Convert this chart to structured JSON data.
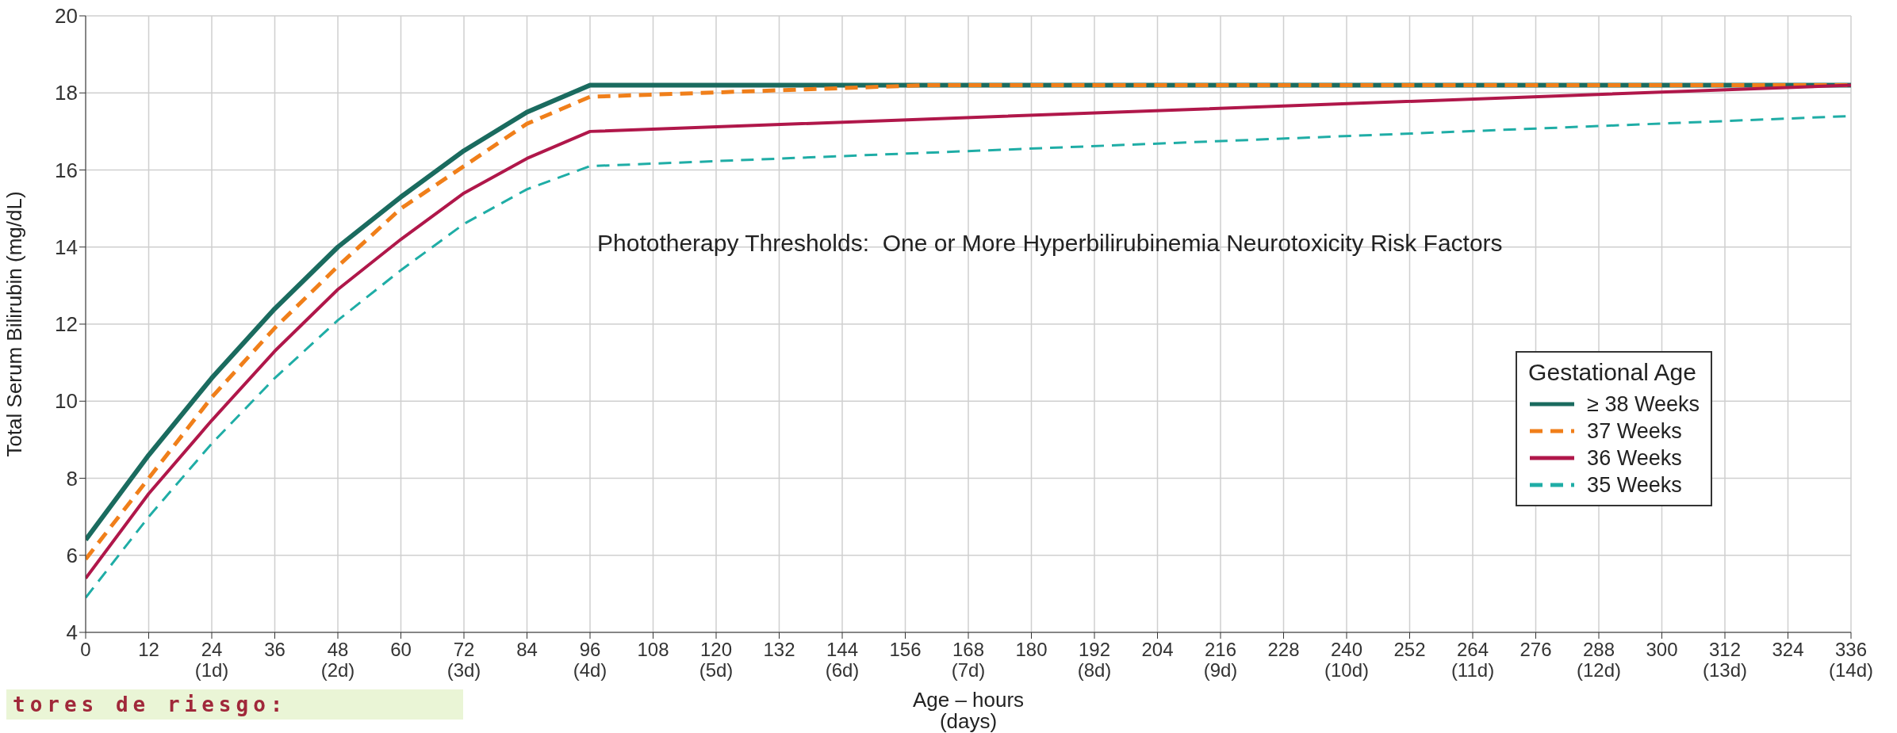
{
  "chart_data": {
    "type": "line",
    "ylabel": "Total Serum Bilirubin (mg/dL)",
    "xlabel": "Age – hours\n(days)",
    "legend_title": "Gestational Age",
    "legend": "bottom right",
    "grid": true,
    "xlim": [
      0,
      336
    ],
    "ylim": [
      4,
      20
    ],
    "yticks": [
      4,
      6,
      8,
      10,
      12,
      14,
      16,
      18,
      20
    ],
    "xticks": [
      0,
      12,
      {
        "value": 24,
        "label": "24\n(1d)"
      },
      36,
      {
        "value": 48,
        "label": "48\n(2d)"
      },
      60,
      {
        "value": 72,
        "label": "72\n(3d)"
      },
      84,
      {
        "value": 96,
        "label": "96\n(4d)"
      },
      108,
      {
        "value": 120,
        "label": "120\n(5d)"
      },
      132,
      {
        "value": 144,
        "label": "144\n(6d)"
      },
      156,
      {
        "value": 168,
        "label": "168\n(7d)"
      },
      180,
      {
        "value": 192,
        "label": "192\n(8d)"
      },
      204,
      {
        "value": 216,
        "label": "216\n(9d)"
      },
      228,
      {
        "value": 240,
        "label": "240\n(10d)"
      },
      252,
      {
        "value": 264,
        "label": "264\n(11d)"
      },
      276,
      {
        "value": 288,
        "label": "288\n(12d)"
      },
      300,
      {
        "value": 312,
        "label": "312\n(13d)"
      },
      324,
      {
        "value": 336,
        "label": "336\n(14d)"
      }
    ],
    "annotations": [
      "Phototherapy Thresholds:  One or More Hyperbilirubinemia Neurotoxicity Risk Factors",
      "tores de riesgo:"
    ],
    "series": [
      {
        "name": "≥ 38 Weeks",
        "color": "#1a6b5f",
        "line_style": "solid",
        "x": [
          0,
          12,
          24,
          36,
          48,
          60,
          72,
          84,
          96,
          336
        ],
        "values": [
          6.4,
          8.6,
          10.6,
          12.4,
          14.0,
          15.3,
          16.5,
          17.5,
          18.2,
          18.2
        ]
      },
      {
        "name": "37 Weeks",
        "color": "#f07f1a",
        "line_style": "dashed",
        "x": [
          0,
          12,
          24,
          36,
          48,
          60,
          72,
          84,
          96,
          160,
          336
        ],
        "values": [
          5.9,
          8.0,
          10.1,
          11.9,
          13.5,
          15.0,
          16.1,
          17.2,
          17.9,
          18.2,
          18.2
        ]
      },
      {
        "name": "36 Weeks",
        "color": "#b0174a",
        "line_style": "solid",
        "x": [
          0,
          12,
          24,
          36,
          48,
          60,
          72,
          84,
          96,
          336
        ],
        "values": [
          5.4,
          7.6,
          9.5,
          11.3,
          12.9,
          14.2,
          15.4,
          16.3,
          17.0,
          18.2
        ]
      },
      {
        "name": "35 Weeks",
        "color": "#1fada6",
        "line_style": "dashed",
        "x": [
          0,
          12,
          24,
          36,
          48,
          60,
          72,
          84,
          96,
          336
        ],
        "values": [
          4.9,
          7.0,
          8.9,
          10.6,
          12.1,
          13.4,
          14.6,
          15.5,
          16.1,
          17.4
        ]
      }
    ]
  }
}
